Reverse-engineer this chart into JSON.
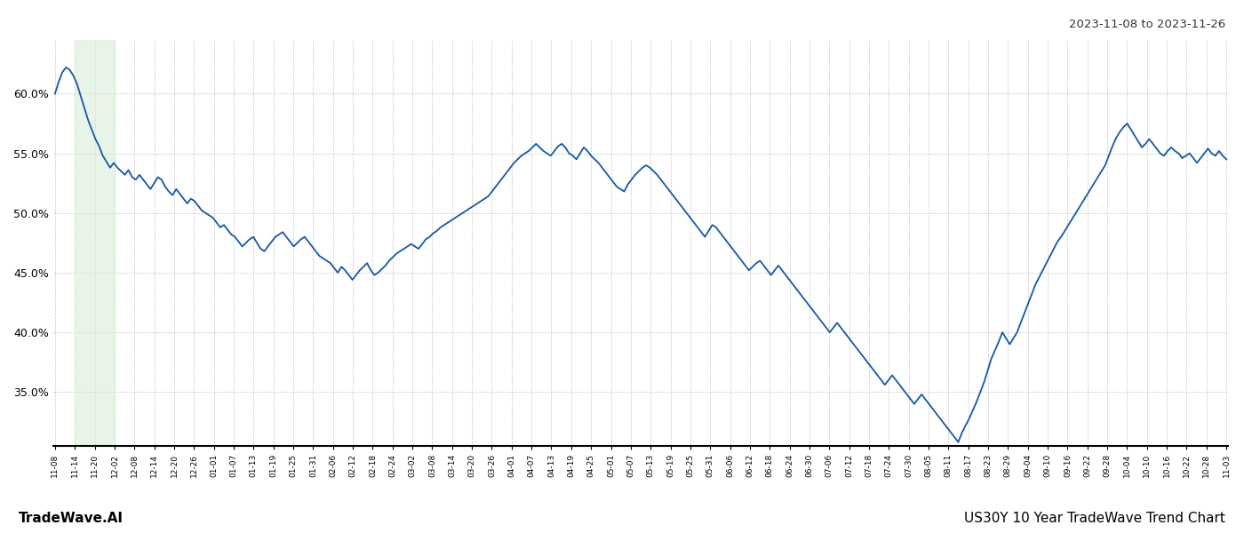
{
  "title_top_right": "2023-11-08 to 2023-11-26",
  "title_bottom_left": "TradeWave.AI",
  "title_bottom_right": "US30Y 10 Year TradeWave Trend Chart",
  "y_ticks": [
    0.35,
    0.4,
    0.45,
    0.5,
    0.55,
    0.6
  ],
  "ylim": [
    0.305,
    0.645
  ],
  "line_color": "#1558a7",
  "line_width": 1.3,
  "background_color": "#ffffff",
  "grid_color": "#c8c8c8",
  "grid_style": "--",
  "highlight_color": "#daeeda",
  "highlight_alpha": 0.6,
  "x_tick_labels": [
    "11-08",
    "11-14",
    "11-20",
    "12-02",
    "12-08",
    "12-14",
    "12-20",
    "12-26",
    "01-01",
    "01-07",
    "01-13",
    "01-19",
    "01-25",
    "01-31",
    "02-06",
    "02-12",
    "02-18",
    "02-24",
    "03-02",
    "03-08",
    "03-14",
    "03-20",
    "03-26",
    "04-01",
    "04-07",
    "04-13",
    "04-19",
    "04-25",
    "05-01",
    "05-07",
    "05-13",
    "05-19",
    "05-25",
    "05-31",
    "06-06",
    "06-12",
    "06-18",
    "06-24",
    "06-30",
    "07-06",
    "07-12",
    "07-18",
    "07-24",
    "07-30",
    "08-05",
    "08-11",
    "08-17",
    "08-23",
    "08-29",
    "09-04",
    "09-10",
    "09-16",
    "09-22",
    "09-28",
    "10-04",
    "10-10",
    "10-16",
    "10-22",
    "10-28",
    "11-03"
  ],
  "values": [
    0.6,
    0.61,
    0.618,
    0.622,
    0.62,
    0.615,
    0.608,
    0.598,
    0.588,
    0.578,
    0.57,
    0.562,
    0.556,
    0.548,
    0.543,
    0.538,
    0.542,
    0.538,
    0.535,
    0.532,
    0.536,
    0.53,
    0.528,
    0.532,
    0.528,
    0.524,
    0.52,
    0.525,
    0.53,
    0.528,
    0.522,
    0.518,
    0.515,
    0.52,
    0.516,
    0.512,
    0.508,
    0.512,
    0.51,
    0.506,
    0.502,
    0.5,
    0.498,
    0.496,
    0.492,
    0.488,
    0.49,
    0.486,
    0.482,
    0.48,
    0.476,
    0.472,
    0.475,
    0.478,
    0.48,
    0.475,
    0.47,
    0.468,
    0.472,
    0.476,
    0.48,
    0.482,
    0.484,
    0.48,
    0.476,
    0.472,
    0.475,
    0.478,
    0.48,
    0.476,
    0.472,
    0.468,
    0.464,
    0.462,
    0.46,
    0.458,
    0.454,
    0.45,
    0.455,
    0.452,
    0.448,
    0.444,
    0.448,
    0.452,
    0.455,
    0.458,
    0.452,
    0.448,
    0.45,
    0.453,
    0.456,
    0.46,
    0.463,
    0.466,
    0.468,
    0.47,
    0.472,
    0.474,
    0.472,
    0.47,
    0.474,
    0.478,
    0.48,
    0.483,
    0.485,
    0.488,
    0.49,
    0.492,
    0.494,
    0.496,
    0.498,
    0.5,
    0.502,
    0.504,
    0.506,
    0.508,
    0.51,
    0.512,
    0.514,
    0.518,
    0.522,
    0.526,
    0.53,
    0.534,
    0.538,
    0.542,
    0.545,
    0.548,
    0.55,
    0.552,
    0.555,
    0.558,
    0.555,
    0.552,
    0.55,
    0.548,
    0.552,
    0.556,
    0.558,
    0.555,
    0.55,
    0.548,
    0.545,
    0.55,
    0.555,
    0.552,
    0.548,
    0.545,
    0.542,
    0.538,
    0.534,
    0.53,
    0.526,
    0.522,
    0.52,
    0.518,
    0.524,
    0.528,
    0.532,
    0.535,
    0.538,
    0.54,
    0.538,
    0.535,
    0.532,
    0.528,
    0.524,
    0.52,
    0.516,
    0.512,
    0.508,
    0.504,
    0.5,
    0.496,
    0.492,
    0.488,
    0.484,
    0.48,
    0.485,
    0.49,
    0.488,
    0.484,
    0.48,
    0.476,
    0.472,
    0.468,
    0.464,
    0.46,
    0.456,
    0.452,
    0.455,
    0.458,
    0.46,
    0.456,
    0.452,
    0.448,
    0.452,
    0.456,
    0.452,
    0.448,
    0.444,
    0.44,
    0.436,
    0.432,
    0.428,
    0.424,
    0.42,
    0.416,
    0.412,
    0.408,
    0.404,
    0.4,
    0.404,
    0.408,
    0.404,
    0.4,
    0.396,
    0.392,
    0.388,
    0.384,
    0.38,
    0.376,
    0.372,
    0.368,
    0.364,
    0.36,
    0.356,
    0.36,
    0.364,
    0.36,
    0.356,
    0.352,
    0.348,
    0.344,
    0.34,
    0.344,
    0.348,
    0.344,
    0.34,
    0.336,
    0.332,
    0.328,
    0.324,
    0.32,
    0.316,
    0.312,
    0.308,
    0.316,
    0.322,
    0.328,
    0.335,
    0.342,
    0.35,
    0.358,
    0.368,
    0.378,
    0.385,
    0.392,
    0.4,
    0.395,
    0.39,
    0.395,
    0.4,
    0.408,
    0.416,
    0.424,
    0.432,
    0.44,
    0.446,
    0.452,
    0.458,
    0.464,
    0.47,
    0.476,
    0.48,
    0.485,
    0.49,
    0.495,
    0.5,
    0.505,
    0.51,
    0.515,
    0.52,
    0.525,
    0.53,
    0.535,
    0.54,
    0.548,
    0.556,
    0.563,
    0.568,
    0.572,
    0.575,
    0.57,
    0.565,
    0.56,
    0.555,
    0.558,
    0.562,
    0.558,
    0.554,
    0.55,
    0.548,
    0.552,
    0.555,
    0.552,
    0.55,
    0.546,
    0.548,
    0.55,
    0.546,
    0.542,
    0.546,
    0.55,
    0.554,
    0.55,
    0.548,
    0.552,
    0.548,
    0.545
  ]
}
